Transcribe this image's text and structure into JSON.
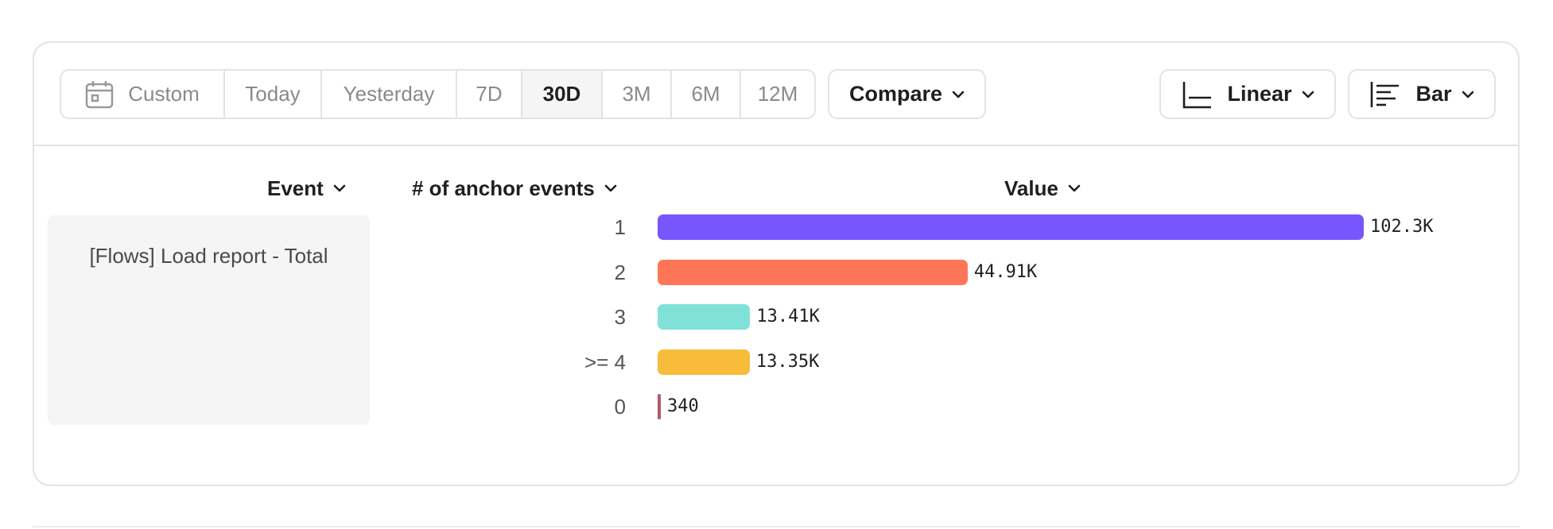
{
  "toolbar": {
    "date_ranges": [
      {
        "label": "Custom",
        "icon": "calendar-icon",
        "active": false
      },
      {
        "label": "Today",
        "active": false
      },
      {
        "label": "Yesterday",
        "active": false
      },
      {
        "label": "7D",
        "active": false
      },
      {
        "label": "30D",
        "active": true
      },
      {
        "label": "3M",
        "active": false
      },
      {
        "label": "6M",
        "active": false
      },
      {
        "label": "12M",
        "active": false
      }
    ],
    "compare_label": "Compare",
    "scale_label": "Linear",
    "scale_icon": "axis-chart-icon",
    "chart_type_label": "Bar",
    "chart_type_icon": "bar-lines-icon"
  },
  "table": {
    "headers": {
      "event": "Event",
      "anchor_events": "# of anchor events",
      "value": "Value"
    },
    "event_name": "[Flows] Load report - Total"
  },
  "chart_data": {
    "type": "bar",
    "orientation": "horizontal",
    "categories": [
      "1",
      "2",
      "3",
      ">= 4",
      "0"
    ],
    "values": [
      102300,
      44910,
      13410,
      13350,
      340
    ],
    "value_labels": [
      "102.3K",
      "44.91K",
      "13.41K",
      "13.35K",
      "340"
    ],
    "colors": [
      "#7856ff",
      "#ff7557",
      "#80e1d9",
      "#f8bc3b",
      "#b2596e"
    ],
    "xlim": [
      0,
      102300
    ]
  }
}
